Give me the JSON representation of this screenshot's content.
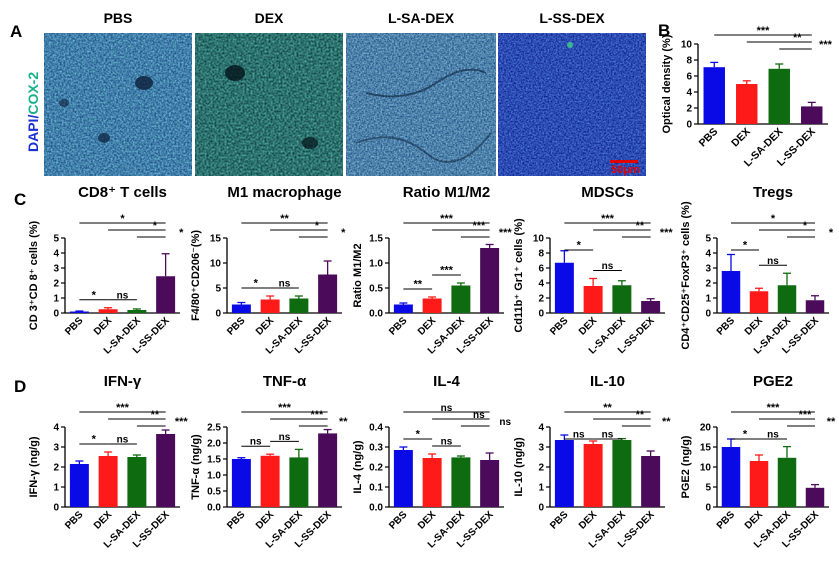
{
  "panel_a": {
    "letter": "A",
    "stain_label": {
      "dapi": "DAPI",
      "slash": "/",
      "cox": "COX-2"
    },
    "conditions": [
      "PBS",
      "DEX",
      "L-SA-DEX",
      "L-SS-DEX"
    ],
    "scale_bar_text": "50μm"
  },
  "panel_c_letter": "C",
  "panel_d_letter": "D",
  "colors": {
    "PBS": "#0a0ae6",
    "DEX": "#ff1a1a",
    "L-SA-DEX": "#0f6b0f",
    "L-SS-DEX": "#4b0a5a"
  },
  "chart_data": [
    {
      "id": "optical-density",
      "panel_letter": "B",
      "type": "bar",
      "title": "",
      "categories": [
        "PBS",
        "DEX",
        "L-SA-DEX",
        "L-SS-DEX"
      ],
      "values": [
        7.1,
        5.0,
        6.9,
        2.2
      ],
      "errors": [
        0.6,
        0.4,
        0.6,
        0.5
      ],
      "ylabel": "Optical density (%)",
      "ylim": [
        0,
        10
      ],
      "yticks": [
        0,
        2,
        4,
        6,
        8,
        10
      ],
      "tick_labels": [
        "0",
        "2",
        "4",
        "6",
        "8",
        "10"
      ],
      "significance": [
        {
          "i": 0,
          "j": 3,
          "label": "***"
        },
        {
          "i": 1,
          "j": 3,
          "label": "**"
        },
        {
          "i": 2,
          "j": 3,
          "label": "***"
        }
      ]
    },
    {
      "id": "cd8",
      "type": "bar",
      "title": "CD8⁺ T cells",
      "categories": [
        "PBS",
        "DEX",
        "L-SA-DEX",
        "L-SS-DEX"
      ],
      "values": [
        0.1,
        0.25,
        0.2,
        2.45
      ],
      "errors": [
        0.03,
        0.1,
        0.07,
        1.5
      ],
      "ylabel": "CD 3⁺CD 8⁺ cells (%)",
      "ylim": [
        0,
        5
      ],
      "yticks": [
        0,
        1,
        2,
        3,
        4,
        5
      ],
      "tick_labels": [
        "0",
        "1",
        "2",
        "3",
        "4",
        "5"
      ],
      "significance": [
        {
          "i": 0,
          "j": 3,
          "label": "*"
        },
        {
          "i": 1,
          "j": 3,
          "label": "*"
        },
        {
          "i": 2,
          "j": 3,
          "label": "*"
        },
        {
          "i": 0,
          "j": 1,
          "label": "*"
        },
        {
          "i": 1,
          "j": 2,
          "label": "ns"
        }
      ]
    },
    {
      "id": "m1",
      "type": "bar",
      "title": "M1 macrophage",
      "categories": [
        "PBS",
        "DEX",
        "L-SA-DEX",
        "L-SS-DEX"
      ],
      "values": [
        1.7,
        2.7,
        2.9,
        7.7
      ],
      "errors": [
        0.4,
        0.7,
        0.5,
        2.7
      ],
      "ylabel": "F4/80⁺CD206⁻(%)",
      "ylim": [
        0,
        15
      ],
      "yticks": [
        0,
        5,
        10,
        15
      ],
      "tick_labels": [
        "0",
        "5",
        "10",
        "15"
      ],
      "significance": [
        {
          "i": 0,
          "j": 3,
          "label": "**"
        },
        {
          "i": 1,
          "j": 3,
          "label": "*"
        },
        {
          "i": 2,
          "j": 3,
          "label": "*"
        },
        {
          "i": 0,
          "j": 1,
          "label": "*"
        },
        {
          "i": 1,
          "j": 2,
          "label": "ns"
        }
      ]
    },
    {
      "id": "ratio",
      "type": "bar",
      "title": "Ratio M1/M2",
      "categories": [
        "PBS",
        "DEX",
        "L-SA-DEX",
        "L-SS-DEX"
      ],
      "values": [
        0.17,
        0.29,
        0.55,
        1.3
      ],
      "errors": [
        0.03,
        0.03,
        0.05,
        0.07
      ],
      "ylabel": "Ratio M1/M2",
      "ylim": [
        0,
        1.5
      ],
      "yticks": [
        0,
        0.5,
        1.0,
        1.5
      ],
      "tick_labels": [
        "0.0",
        "0.5",
        "1.0",
        "1.5"
      ],
      "significance": [
        {
          "i": 0,
          "j": 3,
          "label": "***"
        },
        {
          "i": 1,
          "j": 3,
          "label": "***"
        },
        {
          "i": 2,
          "j": 3,
          "label": "***"
        },
        {
          "i": 0,
          "j": 1,
          "label": "**"
        },
        {
          "i": 1,
          "j": 2,
          "label": "***"
        }
      ]
    },
    {
      "id": "mdsc",
      "type": "bar",
      "title": "MDSCs",
      "categories": [
        "PBS",
        "DEX",
        "L-SA-DEX",
        "L-SS-DEX"
      ],
      "values": [
        6.7,
        3.6,
        3.7,
        1.6
      ],
      "errors": [
        1.6,
        1.0,
        0.6,
        0.3
      ],
      "ylabel": "Cd11b⁺ Gr1⁺ cells (%)",
      "ylim": [
        0,
        10
      ],
      "yticks": [
        0,
        2,
        4,
        6,
        8,
        10
      ],
      "tick_labels": [
        "0",
        "2",
        "4",
        "6",
        "8",
        "10"
      ],
      "significance": [
        {
          "i": 0,
          "j": 3,
          "label": "***"
        },
        {
          "i": 1,
          "j": 3,
          "label": "**"
        },
        {
          "i": 2,
          "j": 3,
          "label": "***"
        },
        {
          "i": 0,
          "j": 1,
          "label": "*"
        },
        {
          "i": 1,
          "j": 2,
          "label": "ns"
        }
      ]
    },
    {
      "id": "treg",
      "type": "bar",
      "title": "Tregs",
      "categories": [
        "PBS",
        "DEX",
        "L-SA-DEX",
        "L-SS-DEX"
      ],
      "values": [
        2.8,
        1.45,
        1.85,
        0.85
      ],
      "errors": [
        1.1,
        0.2,
        0.8,
        0.3
      ],
      "ylabel": "CD4⁺CD25⁺FoxP3⁺ cells (%)",
      "ylim": [
        0,
        5
      ],
      "yticks": [
        0,
        1,
        2,
        3,
        4,
        5
      ],
      "tick_labels": [
        "0",
        "1",
        "2",
        "3",
        "4",
        "5"
      ],
      "significance": [
        {
          "i": 0,
          "j": 3,
          "label": "*"
        },
        {
          "i": 1,
          "j": 3,
          "label": "*"
        },
        {
          "i": 2,
          "j": 3,
          "label": "*"
        },
        {
          "i": 0,
          "j": 1,
          "label": "*"
        },
        {
          "i": 1,
          "j": 2,
          "label": "ns"
        }
      ]
    },
    {
      "id": "ifn",
      "type": "bar",
      "title": "IFN-γ",
      "categories": [
        "PBS",
        "DEX",
        "L-SA-DEX",
        "L-SS-DEX"
      ],
      "values": [
        2.15,
        2.55,
        2.5,
        3.65
      ],
      "errors": [
        0.15,
        0.2,
        0.1,
        0.2
      ],
      "ylabel": "IFN-γ (ng/g)",
      "ylim": [
        0,
        4
      ],
      "yticks": [
        0,
        1,
        2,
        3,
        4
      ],
      "tick_labels": [
        "0",
        "1",
        "2",
        "3",
        "4"
      ],
      "significance": [
        {
          "i": 0,
          "j": 3,
          "label": "***"
        },
        {
          "i": 1,
          "j": 3,
          "label": "**"
        },
        {
          "i": 2,
          "j": 3,
          "label": "***"
        },
        {
          "i": 0,
          "j": 1,
          "label": "*"
        },
        {
          "i": 1,
          "j": 2,
          "label": "ns"
        }
      ]
    },
    {
      "id": "tnf",
      "type": "bar",
      "title": "TNF-α",
      "categories": [
        "PBS",
        "DEX",
        "L-SA-DEX",
        "L-SS-DEX"
      ],
      "values": [
        1.5,
        1.6,
        1.55,
        2.3
      ],
      "errors": [
        0.04,
        0.05,
        0.25,
        0.12
      ],
      "ylabel": "TNF-α (ng/g)",
      "ylim": [
        0,
        2.5
      ],
      "yticks": [
        0,
        0.5,
        1.0,
        1.5,
        2.0,
        2.5
      ],
      "tick_labels": [
        "0.0",
        "0.5",
        "1.0",
        "1.5",
        "2.0",
        "2.5"
      ],
      "significance": [
        {
          "i": 0,
          "j": 3,
          "label": "***"
        },
        {
          "i": 1,
          "j": 3,
          "label": "***"
        },
        {
          "i": 2,
          "j": 3,
          "label": "**"
        },
        {
          "i": 0,
          "j": 1,
          "label": "ns"
        },
        {
          "i": 1,
          "j": 2,
          "label": "ns"
        }
      ]
    },
    {
      "id": "il4",
      "type": "bar",
      "title": "IL-4",
      "categories": [
        "PBS",
        "DEX",
        "L-SA-DEX",
        "L-SS-DEX"
      ],
      "values": [
        0.285,
        0.245,
        0.248,
        0.235
      ],
      "errors": [
        0.015,
        0.02,
        0.007,
        0.035
      ],
      "ylabel": "IL-4 (ng/g)",
      "ylim": [
        0,
        0.4
      ],
      "yticks": [
        0,
        0.1,
        0.2,
        0.3,
        0.4
      ],
      "tick_labels": [
        "0.0",
        "0.1",
        "0.2",
        "0.3",
        "0.4"
      ],
      "significance": [
        {
          "i": 0,
          "j": 3,
          "label": "ns"
        },
        {
          "i": 1,
          "j": 3,
          "label": "ns"
        },
        {
          "i": 2,
          "j": 3,
          "label": "ns"
        },
        {
          "i": 0,
          "j": 1,
          "label": "*"
        },
        {
          "i": 1,
          "j": 2,
          "label": "ns"
        }
      ]
    },
    {
      "id": "il10",
      "type": "bar",
      "title": "IL-10",
      "categories": [
        "PBS",
        "DEX",
        "L-SA-DEX",
        "L-SS-DEX"
      ],
      "values": [
        3.35,
        3.15,
        3.35,
        2.55
      ],
      "errors": [
        0.25,
        0.15,
        0.07,
        0.25
      ],
      "ylabel": "IL-10 (ng/g)",
      "ylim": [
        0,
        4
      ],
      "yticks": [
        0,
        1,
        2,
        3,
        4
      ],
      "tick_labels": [
        "0",
        "1",
        "2",
        "3",
        "4"
      ],
      "significance": [
        {
          "i": 0,
          "j": 3,
          "label": "**"
        },
        {
          "i": 1,
          "j": 3,
          "label": "**"
        },
        {
          "i": 2,
          "j": 3,
          "label": "**"
        },
        {
          "i": 0,
          "j": 1,
          "label": "ns"
        },
        {
          "i": 1,
          "j": 2,
          "label": "ns"
        }
      ]
    },
    {
      "id": "pge2",
      "type": "bar",
      "title": "PGE2",
      "categories": [
        "PBS",
        "DEX",
        "L-SA-DEX",
        "L-SS-DEX"
      ],
      "values": [
        15.0,
        11.5,
        12.3,
        4.8
      ],
      "errors": [
        2.0,
        1.5,
        2.8,
        0.8
      ],
      "ylabel": "PGE2 (ng/g)",
      "ylim": [
        0,
        20
      ],
      "yticks": [
        0,
        5,
        10,
        15,
        20
      ],
      "tick_labels": [
        "0",
        "5",
        "10",
        "15",
        "20"
      ],
      "significance": [
        {
          "i": 0,
          "j": 3,
          "label": "***"
        },
        {
          "i": 1,
          "j": 3,
          "label": "***"
        },
        {
          "i": 2,
          "j": 3,
          "label": "**"
        },
        {
          "i": 0,
          "j": 1,
          "label": "*"
        },
        {
          "i": 1,
          "j": 2,
          "label": "ns"
        }
      ]
    }
  ]
}
